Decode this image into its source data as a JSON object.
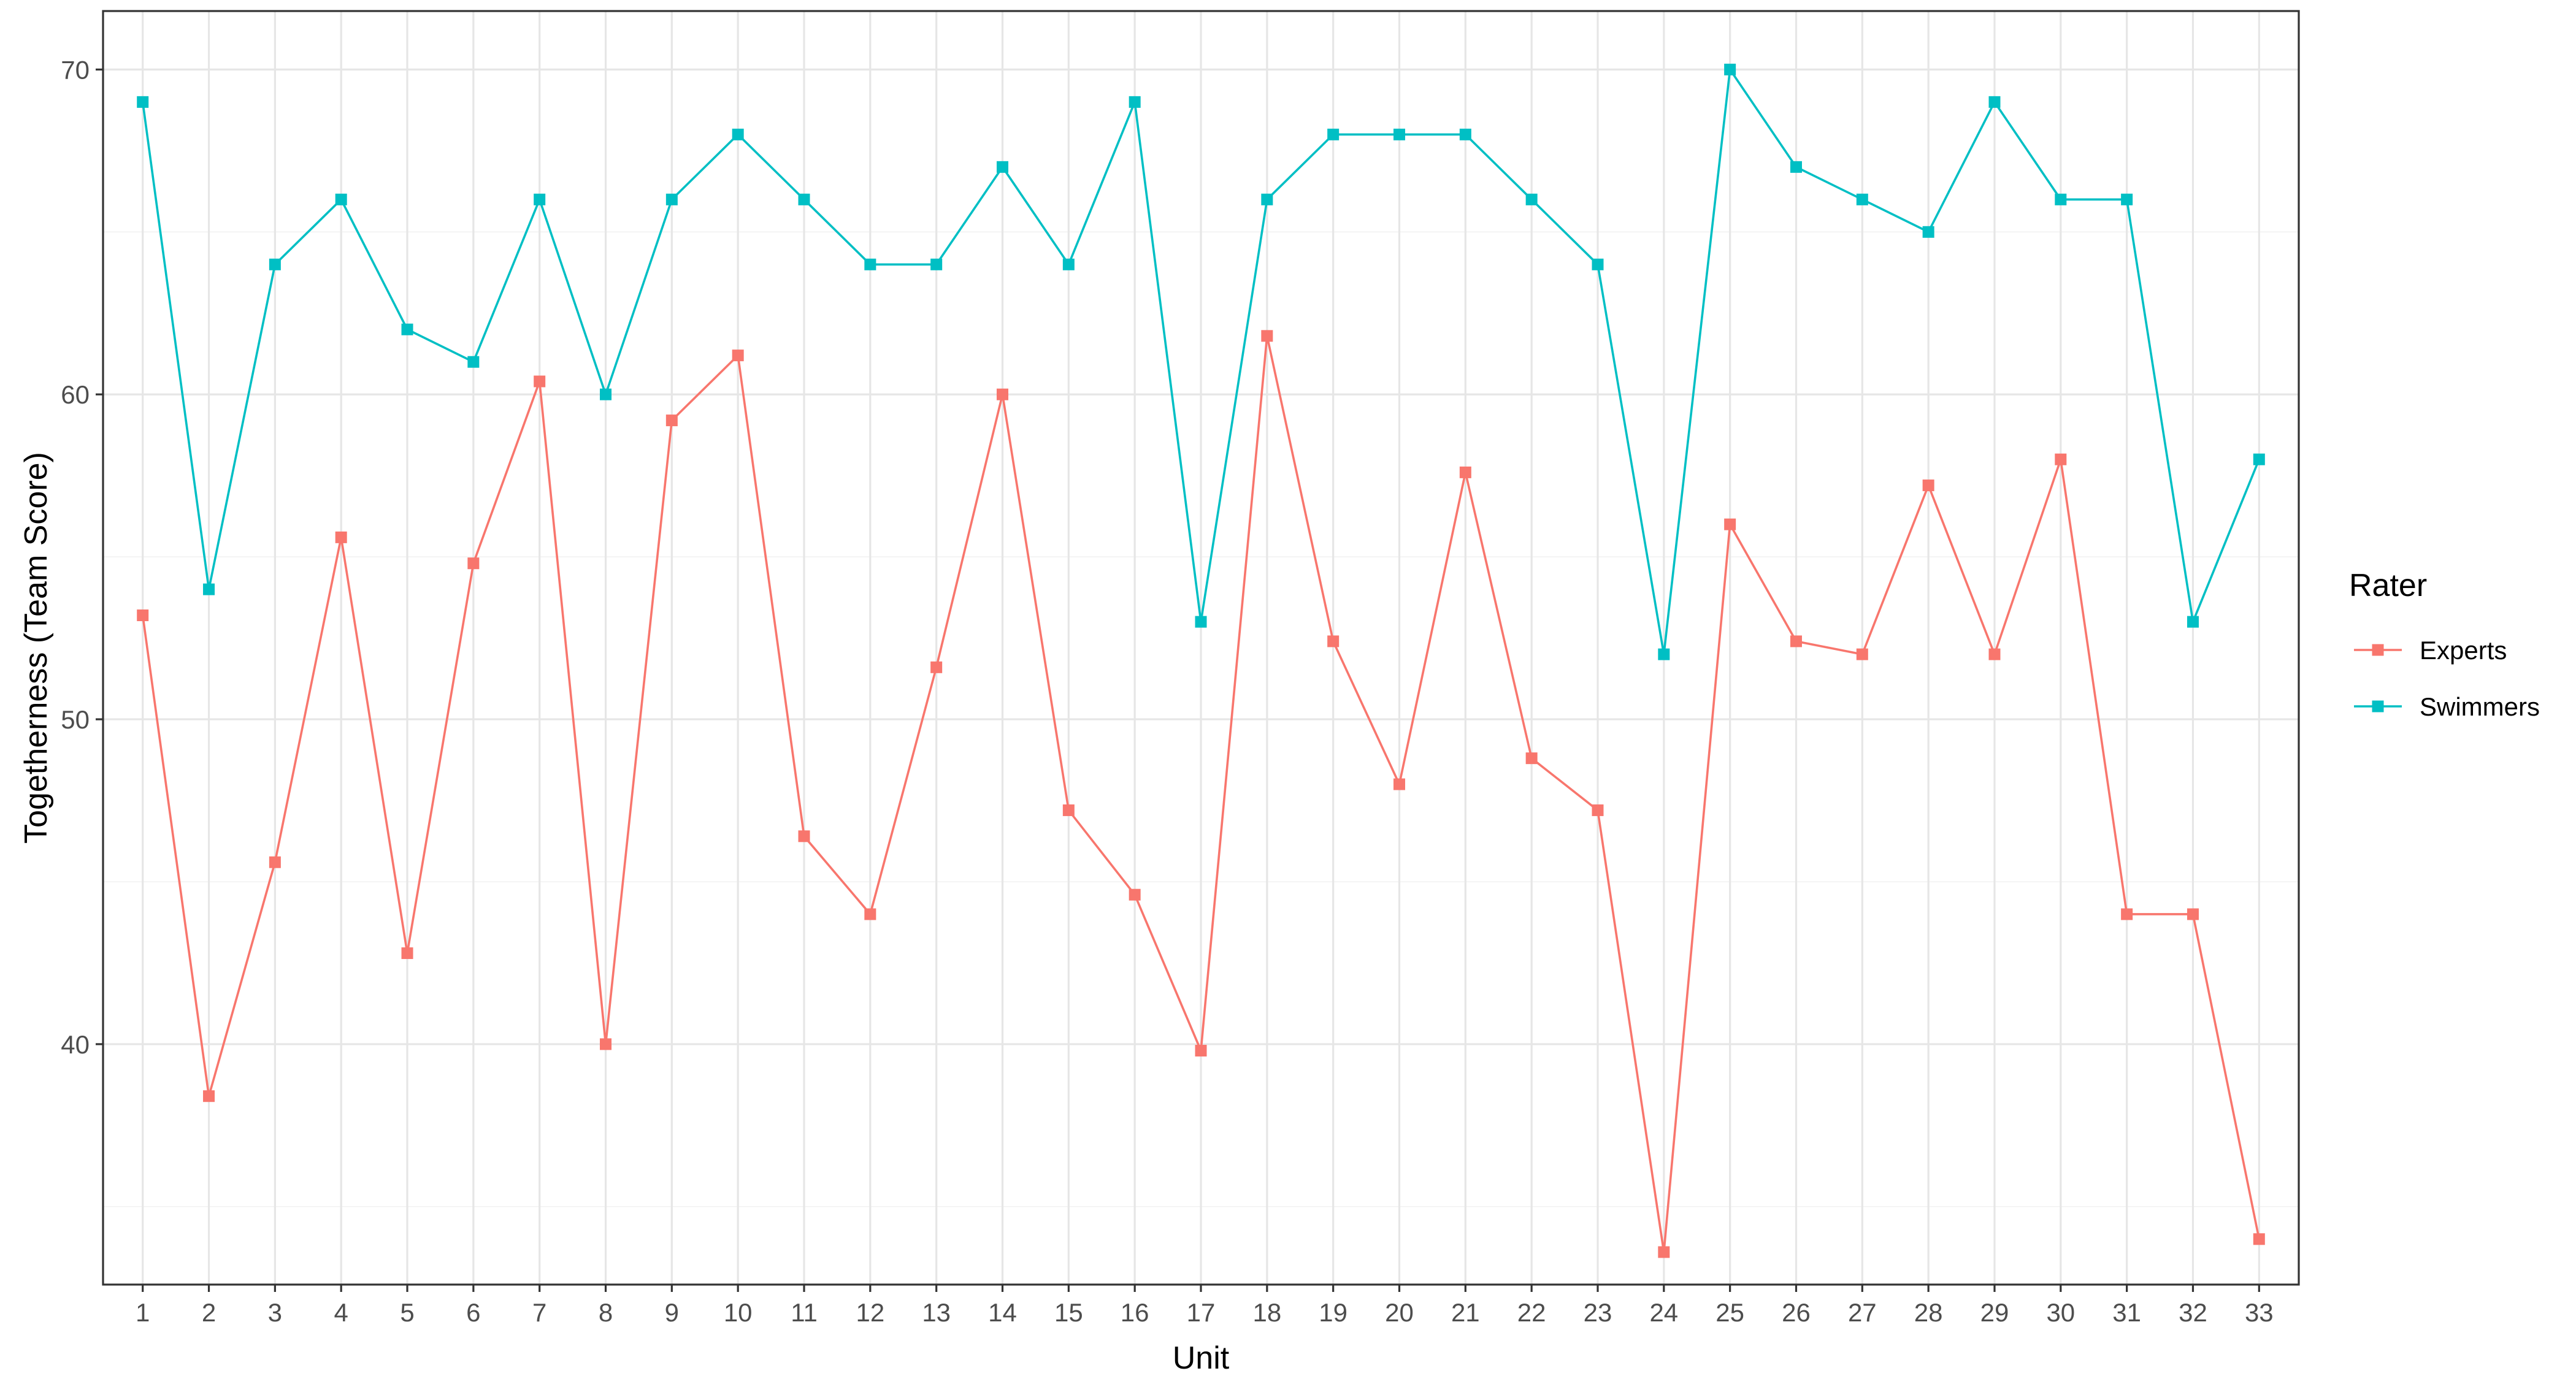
{
  "chart_data": {
    "type": "line",
    "xlabel": "Unit",
    "ylabel": "Togetherness (Team Score)",
    "x": [
      1,
      2,
      3,
      4,
      5,
      6,
      7,
      8,
      9,
      10,
      11,
      12,
      13,
      14,
      15,
      16,
      17,
      18,
      19,
      20,
      21,
      22,
      23,
      24,
      25,
      26,
      27,
      28,
      29,
      30,
      31,
      32,
      33
    ],
    "x_tick_labels": [
      "1",
      "2",
      "3",
      "4",
      "5",
      "6",
      "7",
      "8",
      "9",
      "10",
      "11",
      "12",
      "13",
      "14",
      "15",
      "16",
      "17",
      "18",
      "19",
      "20",
      "21",
      "22",
      "23",
      "24",
      "25",
      "26",
      "27",
      "28",
      "29",
      "30",
      "31",
      "32",
      "33"
    ],
    "y_ticks": [
      40,
      50,
      60,
      70
    ],
    "y_tick_labels": [
      "40",
      "50",
      "60",
      "70"
    ],
    "ylim": [
      32.6,
      71.8
    ],
    "xlim": [
      0.4,
      33.6
    ],
    "grid": true,
    "legend": {
      "title": "Rater",
      "placement": "right"
    },
    "series": [
      {
        "name": "Experts",
        "color": "#F8766D",
        "values": [
          53.2,
          38.4,
          45.6,
          55.6,
          42.8,
          54.8,
          60.4,
          40.0,
          59.2,
          61.2,
          46.4,
          44.0,
          51.6,
          60.0,
          47.2,
          44.6,
          39.8,
          61.8,
          52.4,
          48.0,
          57.6,
          48.8,
          47.2,
          33.6,
          56.0,
          52.4,
          52.0,
          57.2,
          52.0,
          58.0,
          44.0,
          44.0,
          34.0
        ]
      },
      {
        "name": "Swimmers",
        "color": "#00BFC4",
        "values": [
          69,
          54,
          64,
          66,
          62,
          61,
          66,
          60,
          66,
          68,
          66,
          64,
          64,
          67,
          64,
          69,
          53,
          66,
          68,
          68,
          68,
          66,
          64,
          52,
          70,
          67,
          66,
          65,
          69,
          66,
          66,
          53,
          58
        ]
      }
    ]
  }
}
